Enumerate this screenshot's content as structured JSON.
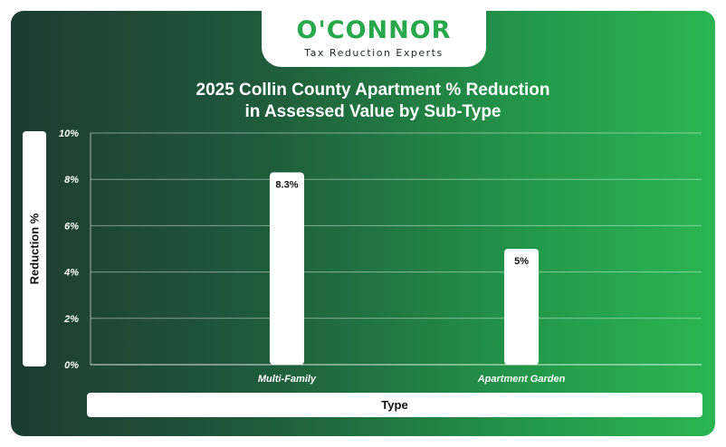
{
  "brand": {
    "logo_text": "O'CONNOR",
    "tagline": "Tax Reduction Experts"
  },
  "chart_data": {
    "type": "bar",
    "title_line1": "2025 Collin County Apartment % Reduction",
    "title_line2": "in Assessed Value by Sub-Type",
    "xlabel": "Type",
    "ylabel": "Reduction %",
    "categories": [
      "Multi-Family",
      "Apartment Garden"
    ],
    "values": [
      8.3,
      5
    ],
    "data_labels": [
      "8.3%",
      "5%"
    ],
    "ylim": [
      0,
      10
    ],
    "yticks": [
      0,
      2,
      4,
      6,
      8,
      10
    ],
    "ytick_labels": [
      "0%",
      "2%",
      "4%",
      "6%",
      "8%",
      "10%"
    ],
    "grid": true,
    "bar_color": "#ffffff"
  }
}
